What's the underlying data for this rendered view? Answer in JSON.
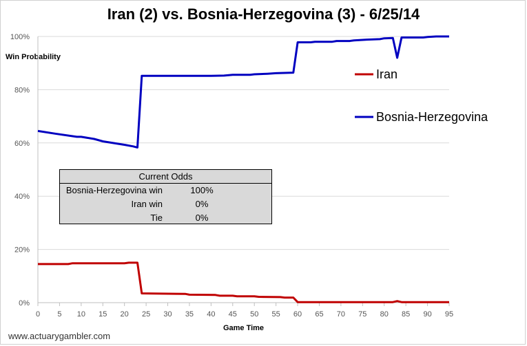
{
  "chart_data": {
    "type": "line",
    "title": "Iran (2) vs. Bosnia-Herzegovina (3) - 6/25/14",
    "xlabel": "Game Time",
    "ylabel": "Win Probability",
    "xlim": [
      0,
      95
    ],
    "ylim": [
      0,
      100
    ],
    "x_ticks": [
      "0",
      "5",
      "10",
      "15",
      "20",
      "25",
      "30",
      "35",
      "40",
      "45",
      "50",
      "55",
      "60",
      "65",
      "70",
      "75",
      "80",
      "85",
      "90",
      "95"
    ],
    "y_ticks": [
      "0%",
      "20%",
      "40%",
      "60%",
      "80%",
      "100%"
    ],
    "grid": "horizontal",
    "legend_placement": "right",
    "series": [
      {
        "name": "Iran",
        "color": "#c00000",
        "points": [
          [
            0,
            14.5
          ],
          [
            7,
            14.5
          ],
          [
            8,
            14.8
          ],
          [
            12,
            14.8
          ],
          [
            20,
            14.8
          ],
          [
            21,
            15
          ],
          [
            23,
            15
          ],
          [
            24,
            3.5
          ],
          [
            27,
            3.4
          ],
          [
            34,
            3.3
          ],
          [
            35,
            3
          ],
          [
            41,
            2.9
          ],
          [
            42,
            2.6
          ],
          [
            45,
            2.6
          ],
          [
            46,
            2.4
          ],
          [
            50,
            2.4
          ],
          [
            51,
            2.2
          ],
          [
            56,
            2.1
          ],
          [
            57,
            1.9
          ],
          [
            59,
            1.9
          ],
          [
            60,
            0.2
          ],
          [
            82,
            0.2
          ],
          [
            83,
            0.6
          ],
          [
            84,
            0.2
          ],
          [
            95,
            0.2
          ]
        ]
      },
      {
        "name": "Bosnia-Herzegovina",
        "color": "#0000c0",
        "points": [
          [
            0,
            64.5
          ],
          [
            4,
            63.5
          ],
          [
            9,
            62.3
          ],
          [
            10,
            62.3
          ],
          [
            13,
            61.5
          ],
          [
            15,
            60.6
          ],
          [
            20,
            59.3
          ],
          [
            22,
            58.7
          ],
          [
            23,
            58.3
          ],
          [
            24,
            85.2
          ],
          [
            30,
            85.2
          ],
          [
            35,
            85.2
          ],
          [
            40,
            85.2
          ],
          [
            43,
            85.3
          ],
          [
            45,
            85.6
          ],
          [
            49,
            85.6
          ],
          [
            50,
            85.8
          ],
          [
            53,
            86
          ],
          [
            55,
            86.2
          ],
          [
            59,
            86.4
          ],
          [
            60,
            97.8
          ],
          [
            63,
            97.8
          ],
          [
            64,
            98
          ],
          [
            68,
            98
          ],
          [
            69,
            98.3
          ],
          [
            72,
            98.3
          ],
          [
            73,
            98.5
          ],
          [
            76,
            98.8
          ],
          [
            79,
            99
          ],
          [
            80,
            99.3
          ],
          [
            82,
            99.4
          ],
          [
            83,
            92
          ],
          [
            84,
            99.6
          ],
          [
            89,
            99.6
          ],
          [
            90,
            99.8
          ],
          [
            92,
            100
          ],
          [
            95,
            100
          ]
        ]
      }
    ]
  },
  "odds_table": {
    "header": "Current Odds",
    "rows": [
      {
        "label": "Bosnia-Herzegovina win",
        "value": "100%"
      },
      {
        "label": "Iran win",
        "value": "0%"
      },
      {
        "label": "Tie",
        "value": "0%"
      }
    ]
  },
  "watermark": "www.actuarygambler.com"
}
